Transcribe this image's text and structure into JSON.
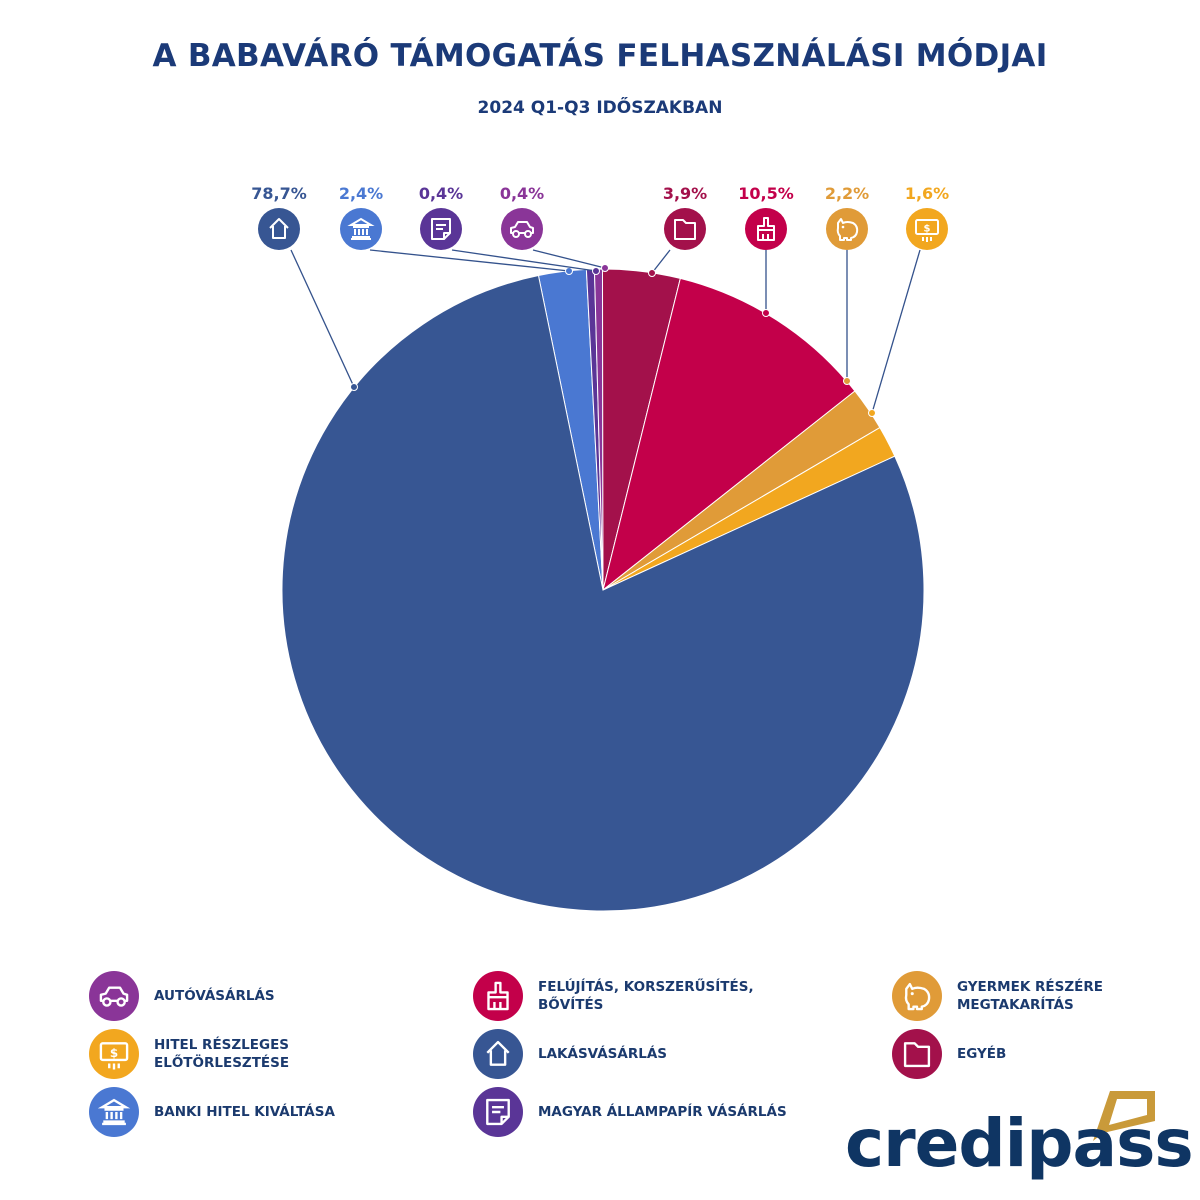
{
  "chart_data": {
    "type": "pie",
    "title": "A BABAVÁRÓ TÁMOGATÁS FELHASZNÁLÁSI MÓDJAI",
    "subtitle": "2024 Q1-Q3 IDŐSZAKBAN",
    "slices": [
      {
        "label": "BANKI HITEL KIVÁLTÁSA",
        "value": 2.4,
        "display": "2,4%",
        "color": "#4a78d2",
        "icon": "bank-icon"
      },
      {
        "label": "MAGYAR ÁLLAMPAPÍR VÁSÁRLÁS",
        "value": 0.4,
        "display": "0,4%",
        "color": "#5a3597",
        "icon": "document-icon"
      },
      {
        "label": "AUTÓVÁSÁRLÁS",
        "value": 0.4,
        "display": "0,4%",
        "color": "#8a3598",
        "icon": "car-icon"
      },
      {
        "label": "EGYÉB",
        "value": 3.9,
        "display": "3,9%",
        "color": "#a3114b",
        "icon": "folder-icon"
      },
      {
        "label": "FELÚJÍTÁS, KORSZERŰSÍTÉS, BŐVÍTÉS",
        "value": 10.5,
        "display": "10,5%",
        "color": "#c3004a",
        "icon": "paintbrush-icon"
      },
      {
        "label": "GYERMEK RÉSZÉRE MEGTAKARÍTÁS",
        "value": 2.2,
        "display": "2,2%",
        "color": "#e09b38",
        "icon": "piggy-bank-icon"
      },
      {
        "label": "HITEL RÉSZLEGES ELŐTÖRLESZTÉSE",
        "value": 1.6,
        "display": "1,6%",
        "color": "#f2a71f",
        "icon": "banknote-icon"
      },
      {
        "label": "LAKÁSVÁSÁRLÁS",
        "value": 78.7,
        "display": "78,7%",
        "color": "#375693",
        "icon": "house-icon"
      }
    ],
    "legend_placement": "bottom",
    "legend_order": [
      "AUTÓVÁSÁRLÁS",
      "HITEL RÉSZLEGES ELŐTÖRLESZTÉSE",
      "BANKI HITEL KIVÁLTÁSA",
      "FELÚJÍTÁS, KORSZERŰSÍTÉS, BŐVÍTÉS",
      "LAKÁSVÁSÁRLÁS",
      "MAGYAR ÁLLAMPAPÍR VÁSÁRLÁS",
      "GYERMEK RÉSZÉRE MEGTAKARÍTÁS",
      "EGYÉB"
    ]
  },
  "brand": {
    "logo_text": "credipass",
    "navy": "#0f3563",
    "gold": "#c99a3a"
  }
}
